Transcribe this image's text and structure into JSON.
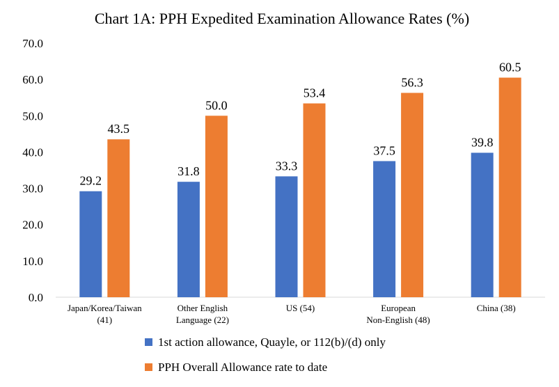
{
  "chart_data": {
    "type": "bar",
    "title": "Chart 1A: PPH Expedited Examination Allowance Rates (%)",
    "xlabel": "",
    "ylabel": "",
    "ylim": [
      0,
      70
    ],
    "yticks": [
      "0.0",
      "10.0",
      "20.0",
      "30.0",
      "40.0",
      "50.0",
      "60.0",
      "70.0"
    ],
    "categories": [
      [
        "Japan/Korea/Taiwan",
        "(41)"
      ],
      [
        "Other English",
        "Language  (22)"
      ],
      [
        "US (54)"
      ],
      [
        "European",
        "Non-English  (48)"
      ],
      [
        "China  (38)"
      ]
    ],
    "series": [
      {
        "name": "1st action allowance, Quayle, or 112(b)/(d) only",
        "color": "#4472C4",
        "values": [
          29.2,
          31.8,
          33.3,
          37.5,
          39.8
        ],
        "labels": [
          "29.2",
          "31.8",
          "33.3",
          "37.5",
          "39.8"
        ]
      },
      {
        "name": "PPH Overall Allowance rate to date",
        "color": "#ED7D31",
        "values": [
          43.5,
          50.0,
          53.4,
          56.3,
          60.5
        ],
        "labels": [
          "43.5",
          "50.0",
          "53.4",
          "56.3",
          "60.5"
        ]
      }
    ],
    "grid": false,
    "legend": "bottom"
  }
}
